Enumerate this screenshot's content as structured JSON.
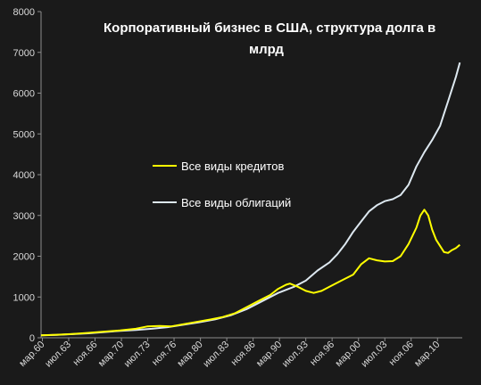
{
  "chart_data": {
    "type": "line",
    "title_lines": [
      "Корпоративный бизнес в США, структура долга в",
      "млрд"
    ],
    "xlabel": "",
    "ylabel": "",
    "ylim": [
      0,
      8000
    ],
    "yticks": [
      "0",
      "1000",
      "2000",
      "3000",
      "4000",
      "5000",
      "6000",
      "7000",
      "8000"
    ],
    "xlim": [
      1960.0,
      2013.3
    ],
    "xticks": [
      {
        "label": "мар.60",
        "x": 1960.17
      },
      {
        "label": "июл.63",
        "x": 1963.5
      },
      {
        "label": "ноя.66",
        "x": 1966.83
      },
      {
        "label": "мар.70",
        "x": 1970.17
      },
      {
        "label": "июл.73",
        "x": 1973.5
      },
      {
        "label": "ноя.76",
        "x": 1976.83
      },
      {
        "label": "мар.80",
        "x": 1980.17
      },
      {
        "label": "июл.83",
        "x": 1983.5
      },
      {
        "label": "ноя.86",
        "x": 1986.83
      },
      {
        "label": "мар.90",
        "x": 1990.17
      },
      {
        "label": "июл.93",
        "x": 1993.5
      },
      {
        "label": "ноя.96",
        "x": 1996.83
      },
      {
        "label": "мар.00",
        "x": 2000.17
      },
      {
        "label": "июл.03",
        "x": 2003.5
      },
      {
        "label": "ноя.06",
        "x": 2006.83
      },
      {
        "label": "мар.10",
        "x": 2010.17
      }
    ],
    "grid": false,
    "legend_placement": "center-left",
    "series": [
      {
        "name": "Все виды кредитов",
        "color": "#ffff00",
        "points": [
          [
            1960.0,
            60
          ],
          [
            1962.0,
            75
          ],
          [
            1964.0,
            95
          ],
          [
            1966.0,
            120
          ],
          [
            1968.0,
            150
          ],
          [
            1970.0,
            180
          ],
          [
            1972.0,
            220
          ],
          [
            1973.5,
            280
          ],
          [
            1975.0,
            290
          ],
          [
            1976.5,
            280
          ],
          [
            1978.0,
            330
          ],
          [
            1980.0,
            400
          ],
          [
            1981.5,
            450
          ],
          [
            1983.0,
            510
          ],
          [
            1984.5,
            600
          ],
          [
            1986.0,
            750
          ],
          [
            1987.5,
            900
          ],
          [
            1989.0,
            1050
          ],
          [
            1990.0,
            1200
          ],
          [
            1991.0,
            1300
          ],
          [
            1991.5,
            1330
          ],
          [
            1992.5,
            1250
          ],
          [
            1993.5,
            1150
          ],
          [
            1994.5,
            1100
          ],
          [
            1995.5,
            1150
          ],
          [
            1996.5,
            1250
          ],
          [
            1998.0,
            1400
          ],
          [
            1999.5,
            1550
          ],
          [
            2000.5,
            1800
          ],
          [
            2001.5,
            1950
          ],
          [
            2002.5,
            1900
          ],
          [
            2003.5,
            1870
          ],
          [
            2004.5,
            1880
          ],
          [
            2005.5,
            2000
          ],
          [
            2006.5,
            2300
          ],
          [
            2007.5,
            2700
          ],
          [
            2008.0,
            3000
          ],
          [
            2008.5,
            3140
          ],
          [
            2009.0,
            3000
          ],
          [
            2009.5,
            2650
          ],
          [
            2010.0,
            2400
          ],
          [
            2010.5,
            2250
          ],
          [
            2011.0,
            2100
          ],
          [
            2011.5,
            2080
          ],
          [
            2012.0,
            2150
          ],
          [
            2012.5,
            2200
          ],
          [
            2013.0,
            2280
          ]
        ]
      },
      {
        "name": "Все виды облигаций",
        "color": "#dde8f0",
        "points": [
          [
            1960.0,
            60
          ],
          [
            1962.0,
            70
          ],
          [
            1964.0,
            90
          ],
          [
            1966.0,
            110
          ],
          [
            1968.0,
            140
          ],
          [
            1970.0,
            170
          ],
          [
            1972.0,
            190
          ],
          [
            1974.0,
            220
          ],
          [
            1976.0,
            260
          ],
          [
            1978.0,
            320
          ],
          [
            1980.0,
            380
          ],
          [
            1982.0,
            450
          ],
          [
            1984.0,
            550
          ],
          [
            1986.0,
            700
          ],
          [
            1988.0,
            900
          ],
          [
            1990.0,
            1100
          ],
          [
            1992.0,
            1250
          ],
          [
            1993.5,
            1400
          ],
          [
            1995.0,
            1650
          ],
          [
            1996.5,
            1850
          ],
          [
            1997.5,
            2050
          ],
          [
            1998.5,
            2300
          ],
          [
            1999.5,
            2600
          ],
          [
            2000.5,
            2850
          ],
          [
            2001.5,
            3100
          ],
          [
            2002.5,
            3250
          ],
          [
            2003.5,
            3350
          ],
          [
            2004.5,
            3400
          ],
          [
            2005.5,
            3500
          ],
          [
            2006.5,
            3750
          ],
          [
            2007.5,
            4200
          ],
          [
            2008.5,
            4550
          ],
          [
            2009.5,
            4850
          ],
          [
            2010.5,
            5200
          ],
          [
            2011.0,
            5500
          ],
          [
            2011.5,
            5800
          ],
          [
            2012.0,
            6100
          ],
          [
            2012.5,
            6400
          ],
          [
            2013.0,
            6750
          ]
        ]
      }
    ]
  }
}
